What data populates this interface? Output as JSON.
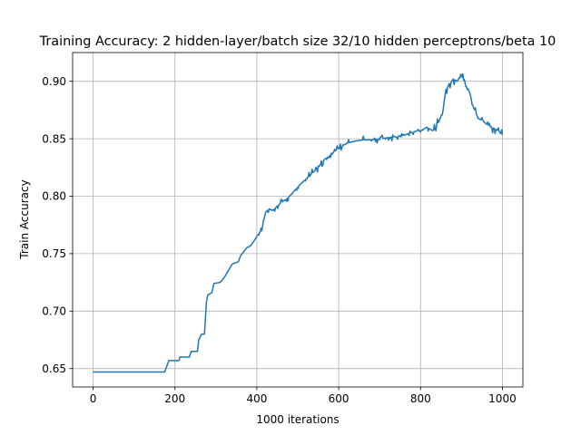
{
  "chart_data": {
    "type": "line",
    "title": "Training Accuracy: 2 hidden-layer/batch size 32/10 hidden perceptrons/beta 10",
    "xlabel": "1000 iterations",
    "ylabel": "Train Accuracy",
    "xlim": [
      -50,
      1050
    ],
    "ylim": [
      0.634,
      0.925
    ],
    "xticks": [
      0,
      200,
      400,
      600,
      800,
      1000
    ],
    "yticks": [
      0.65,
      0.7,
      0.75,
      0.8,
      0.85,
      0.9
    ],
    "xtick_labels": [
      "0",
      "200",
      "400",
      "600",
      "800",
      "1000"
    ],
    "ytick_labels": [
      "0.65",
      "0.70",
      "0.75",
      "0.80",
      "0.85",
      "0.90"
    ],
    "grid": true,
    "line_color": "#1f77b4",
    "series": [
      {
        "points": [
          [
            0,
            0.647
          ],
          [
            100,
            0.647
          ],
          [
            175,
            0.647
          ],
          [
            180,
            0.652
          ],
          [
            185,
            0.657
          ],
          [
            210,
            0.657
          ],
          [
            212,
            0.66
          ],
          [
            235,
            0.66
          ],
          [
            240,
            0.665
          ],
          [
            255,
            0.665
          ],
          [
            258,
            0.675
          ],
          [
            265,
            0.68
          ],
          [
            272,
            0.68
          ],
          [
            277,
            0.708
          ],
          [
            280,
            0.714
          ],
          [
            290,
            0.716
          ],
          [
            295,
            0.724
          ],
          [
            310,
            0.725
          ],
          [
            320,
            0.729
          ],
          [
            330,
            0.735
          ],
          [
            340,
            0.741
          ],
          [
            355,
            0.743
          ],
          [
            360,
            0.748
          ],
          [
            375,
            0.755
          ],
          [
            385,
            0.757
          ],
          [
            395,
            0.762
          ],
          [
            405,
            0.768
          ],
          [
            412,
            0.77
          ],
          [
            420,
            0.784
          ],
          [
            428,
            0.789
          ],
          [
            440,
            0.788
          ],
          [
            455,
            0.793
          ],
          [
            470,
            0.797
          ],
          [
            480,
            0.8
          ],
          [
            495,
            0.806
          ],
          [
            505,
            0.81
          ],
          [
            520,
            0.815
          ],
          [
            535,
            0.82
          ],
          [
            550,
            0.825
          ],
          [
            565,
            0.832
          ],
          [
            580,
            0.836
          ],
          [
            600,
            0.842
          ],
          [
            620,
            0.846
          ],
          [
            640,
            0.848
          ],
          [
            660,
            0.849
          ],
          [
            680,
            0.849
          ],
          [
            700,
            0.85
          ],
          [
            720,
            0.851
          ],
          [
            740,
            0.852
          ],
          [
            760,
            0.853
          ],
          [
            780,
            0.856
          ],
          [
            800,
            0.857
          ],
          [
            815,
            0.86
          ],
          [
            830,
            0.857
          ],
          [
            845,
            0.865
          ],
          [
            855,
            0.875
          ],
          [
            862,
            0.893
          ],
          [
            870,
            0.897
          ],
          [
            880,
            0.902
          ],
          [
            890,
            0.9
          ],
          [
            898,
            0.906
          ],
          [
            905,
            0.901
          ],
          [
            912,
            0.897
          ],
          [
            920,
            0.89
          ],
          [
            930,
            0.878
          ],
          [
            940,
            0.868
          ],
          [
            950,
            0.866
          ],
          [
            960,
            0.863
          ],
          [
            970,
            0.861
          ],
          [
            980,
            0.859
          ],
          [
            990,
            0.857
          ],
          [
            1000,
            0.853
          ]
        ]
      }
    ]
  }
}
